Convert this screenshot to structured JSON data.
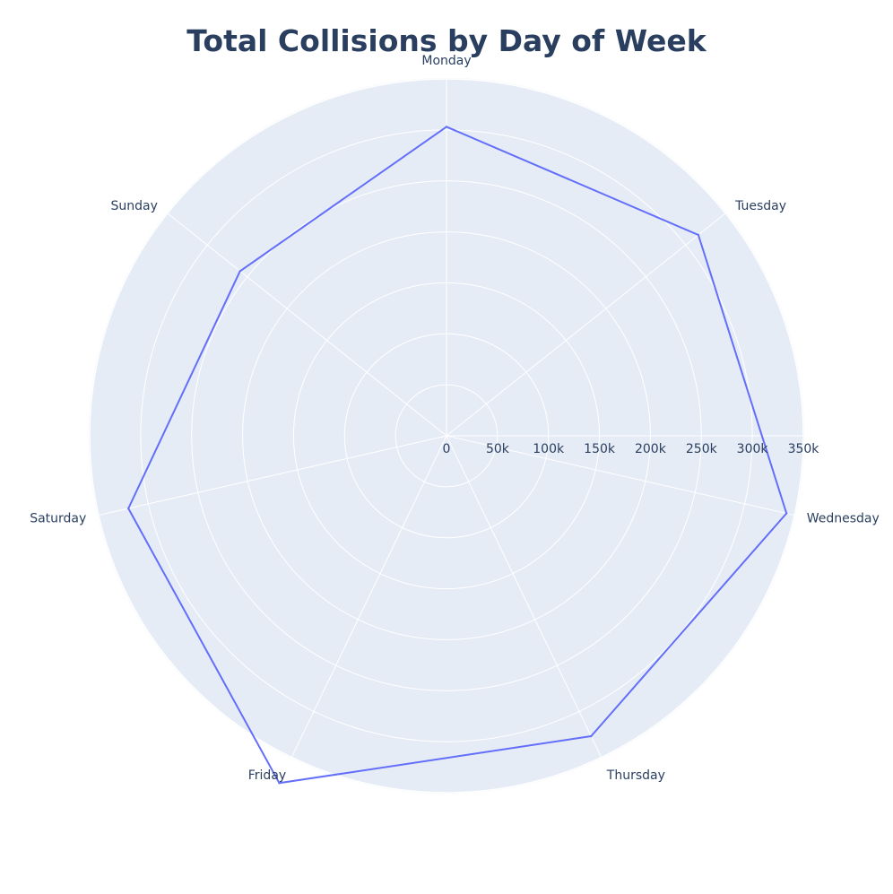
{
  "chart_data": {
    "type": "radar",
    "title": "Total Collisions by Day of Week",
    "categories": [
      "Monday",
      "Tuesday",
      "Wednesday",
      "Thursday",
      "Friday",
      "Saturday",
      "Sunday"
    ],
    "series": [
      {
        "values": [
          303000,
          316000,
          342000,
          327000,
          378000,
          320000,
          259000
        ]
      }
    ],
    "radial_range": [
      0,
      350000
    ],
    "radial_ticks": [
      "0",
      "50k",
      "100k",
      "150k",
      "200k",
      "250k",
      "300k",
      "350k"
    ],
    "grid": true,
    "colors": {
      "background": "#e5ecf6",
      "grid": "#ffffff",
      "line": "#636efa",
      "text": "#2a3f5f"
    }
  }
}
